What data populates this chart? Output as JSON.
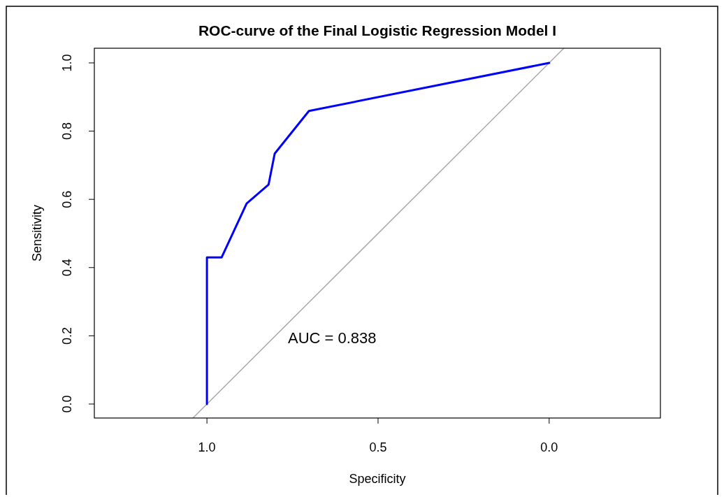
{
  "chart_data": {
    "type": "line",
    "title": "ROC-curve of the Final Logistic Regression Model I",
    "xlabel": "Specificity",
    "ylabel": "Sensitivity",
    "annotations": [
      "AUC = 0.838"
    ],
    "xlim": [
      1.329,
      -0.325
    ],
    "ylim": [
      -0.041,
      1.043
    ],
    "xticks": [
      {
        "value": 1,
        "label": "1.0"
      },
      {
        "value": 0.5,
        "label": "0.5"
      },
      {
        "value": 0,
        "label": "0.0"
      }
    ],
    "yticks": [
      {
        "value": 0,
        "label": "0.0"
      },
      {
        "value": 0.2,
        "label": "0.2"
      },
      {
        "value": 0.4,
        "label": "0.4"
      },
      {
        "value": 0.6,
        "label": "0.6"
      },
      {
        "value": 0.8,
        "label": "0.8"
      },
      {
        "value": 1,
        "label": "1.0"
      }
    ],
    "grid": false,
    "marker": "none",
    "line_style": "solid",
    "series": [
      {
        "color": "#aaaaaa",
        "x": [
          1.041,
          -0.043
        ],
        "values": [
          -0.041,
          1.043
        ]
      },
      {
        "color": "#0000ff",
        "x": [
          1.0,
          1.0,
          0.957,
          0.884,
          0.82,
          0.802,
          0.702,
          0.0
        ],
        "values": [
          0.0,
          0.43,
          0.43,
          0.588,
          0.643,
          0.734,
          0.859,
          1.0
        ]
      }
    ]
  }
}
